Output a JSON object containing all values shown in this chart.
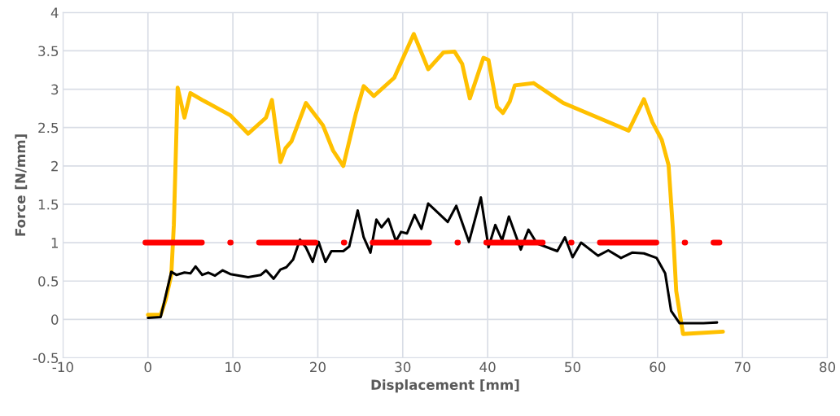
{
  "chart_data": {
    "type": "line",
    "xlabel": "Displacement [mm]",
    "ylabel": "Force [N/mm]",
    "xlim": [
      -10,
      80
    ],
    "xticks": [
      -10,
      0,
      10,
      20,
      30,
      40,
      50,
      60,
      70,
      80
    ],
    "ylim": [
      -0.5,
      4
    ],
    "yticks": [
      -0.5,
      0,
      0.5,
      1,
      1.5,
      2,
      2.5,
      3,
      3.5,
      4
    ],
    "grid": true,
    "marker": "none",
    "series": [
      {
        "color": "#ffc000",
        "line_style": "solid",
        "x": [
          0,
          1.5,
          2.1,
          2.75,
          3.05,
          3.5,
          4.3,
          5.0,
          6.4,
          9.7,
          11.8,
          13.9,
          14.6,
          15.6,
          16.2,
          16.9,
          18.6,
          20.6,
          21.8,
          23.0,
          24.5,
          25.4,
          26.6,
          29.0,
          31.3,
          33.0,
          34.8,
          36.1,
          37.0,
          37.9,
          39.5,
          40.1,
          41.1,
          41.8,
          42.6,
          43.2,
          45.4,
          48.9,
          56.6,
          58.4,
          59.4,
          60.5,
          61.3,
          61.8,
          62.2,
          63.0,
          67.7
        ],
        "values": [
          0.06,
          0.06,
          0.26,
          0.58,
          1.23,
          3.02,
          2.63,
          2.95,
          2.86,
          2.66,
          2.42,
          2.63,
          2.86,
          2.05,
          2.23,
          2.32,
          2.82,
          2.53,
          2.2,
          2.0,
          2.69,
          3.04,
          2.91,
          3.15,
          3.72,
          3.26,
          3.48,
          3.49,
          3.33,
          2.88,
          3.41,
          3.38,
          2.77,
          2.69,
          2.84,
          3.05,
          3.08,
          2.82,
          2.46,
          2.87,
          2.57,
          2.34,
          2.01,
          1.19,
          0.37,
          -0.19,
          -0.16
        ]
      },
      {
        "color": "#000000",
        "line_style": "solid",
        "x": [
          0,
          1.5,
          2.75,
          3.35,
          4.3,
          5.0,
          5.6,
          6.4,
          7.1,
          7.9,
          8.8,
          9.7,
          11.8,
          13.3,
          13.9,
          14.8,
          15.6,
          16.3,
          17.1,
          17.9,
          18.6,
          19.4,
          20.1,
          20.9,
          21.6,
          23.0,
          23.7,
          24.7,
          25.4,
          26.2,
          26.9,
          27.5,
          28.3,
          29.2,
          29.8,
          30.5,
          31.4,
          32.2,
          33.0,
          35.3,
          36.3,
          37.8,
          39.2,
          40.1,
          40.9,
          41.7,
          42.5,
          43.9,
          44.8,
          45.8,
          48.2,
          49.1,
          50.0,
          51.0,
          53.0,
          54.2,
          55.7,
          57.0,
          58.4,
          59.9,
          60.9,
          61.6,
          62.6,
          65.4,
          67.0
        ],
        "values": [
          0.02,
          0.03,
          0.62,
          0.58,
          0.61,
          0.6,
          0.69,
          0.58,
          0.61,
          0.57,
          0.64,
          0.59,
          0.55,
          0.58,
          0.64,
          0.53,
          0.65,
          0.68,
          0.78,
          1.04,
          0.94,
          0.75,
          1.01,
          0.75,
          0.89,
          0.89,
          0.95,
          1.42,
          1.07,
          0.87,
          1.3,
          1.2,
          1.31,
          1.02,
          1.14,
          1.12,
          1.36,
          1.18,
          1.51,
          1.27,
          1.48,
          1.01,
          1.59,
          0.94,
          1.23,
          1.03,
          1.34,
          0.91,
          1.17,
          0.99,
          0.89,
          1.07,
          0.81,
          1.0,
          0.83,
          0.9,
          0.8,
          0.87,
          0.86,
          0.8,
          0.6,
          0.11,
          -0.05,
          -0.05,
          -0.04
        ]
      },
      {
        "color": "#ff0000",
        "line_style": "dashdot",
        "x": [
          -0.3,
          67.3
        ],
        "values": [
          1,
          1
        ]
      }
    ]
  }
}
